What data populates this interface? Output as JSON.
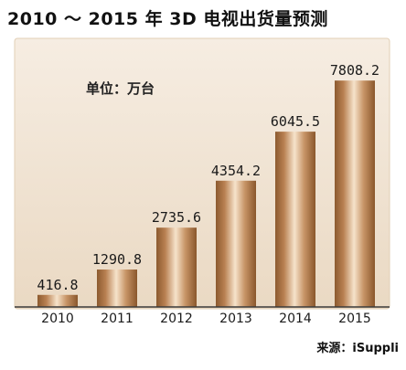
{
  "chart_data": {
    "type": "bar",
    "title": "2010 ～ 2015 年 3D 电视出货量预测",
    "unit": "单位：万台",
    "source": "来源：iSuppli",
    "categories": [
      "2010",
      "2011",
      "2012",
      "2013",
      "2014",
      "2015"
    ],
    "values": [
      416.8,
      1290.8,
      2735.6,
      4354.2,
      6045.5,
      7808.2
    ],
    "value_labels": [
      "416.8",
      "1290.8",
      "2735.6",
      "4354.2",
      "6045.5",
      "7808.2"
    ],
    "ylim": [
      0,
      9200
    ],
    "grid": false,
    "legend": "none",
    "colors": {
      "background_panel": "#f2e6d7",
      "bar_dark": "#9b6537",
      "bar_mid": "#c08a5a",
      "bar_light": "#f4dfc6",
      "axis": "#3a3a3a"
    }
  }
}
